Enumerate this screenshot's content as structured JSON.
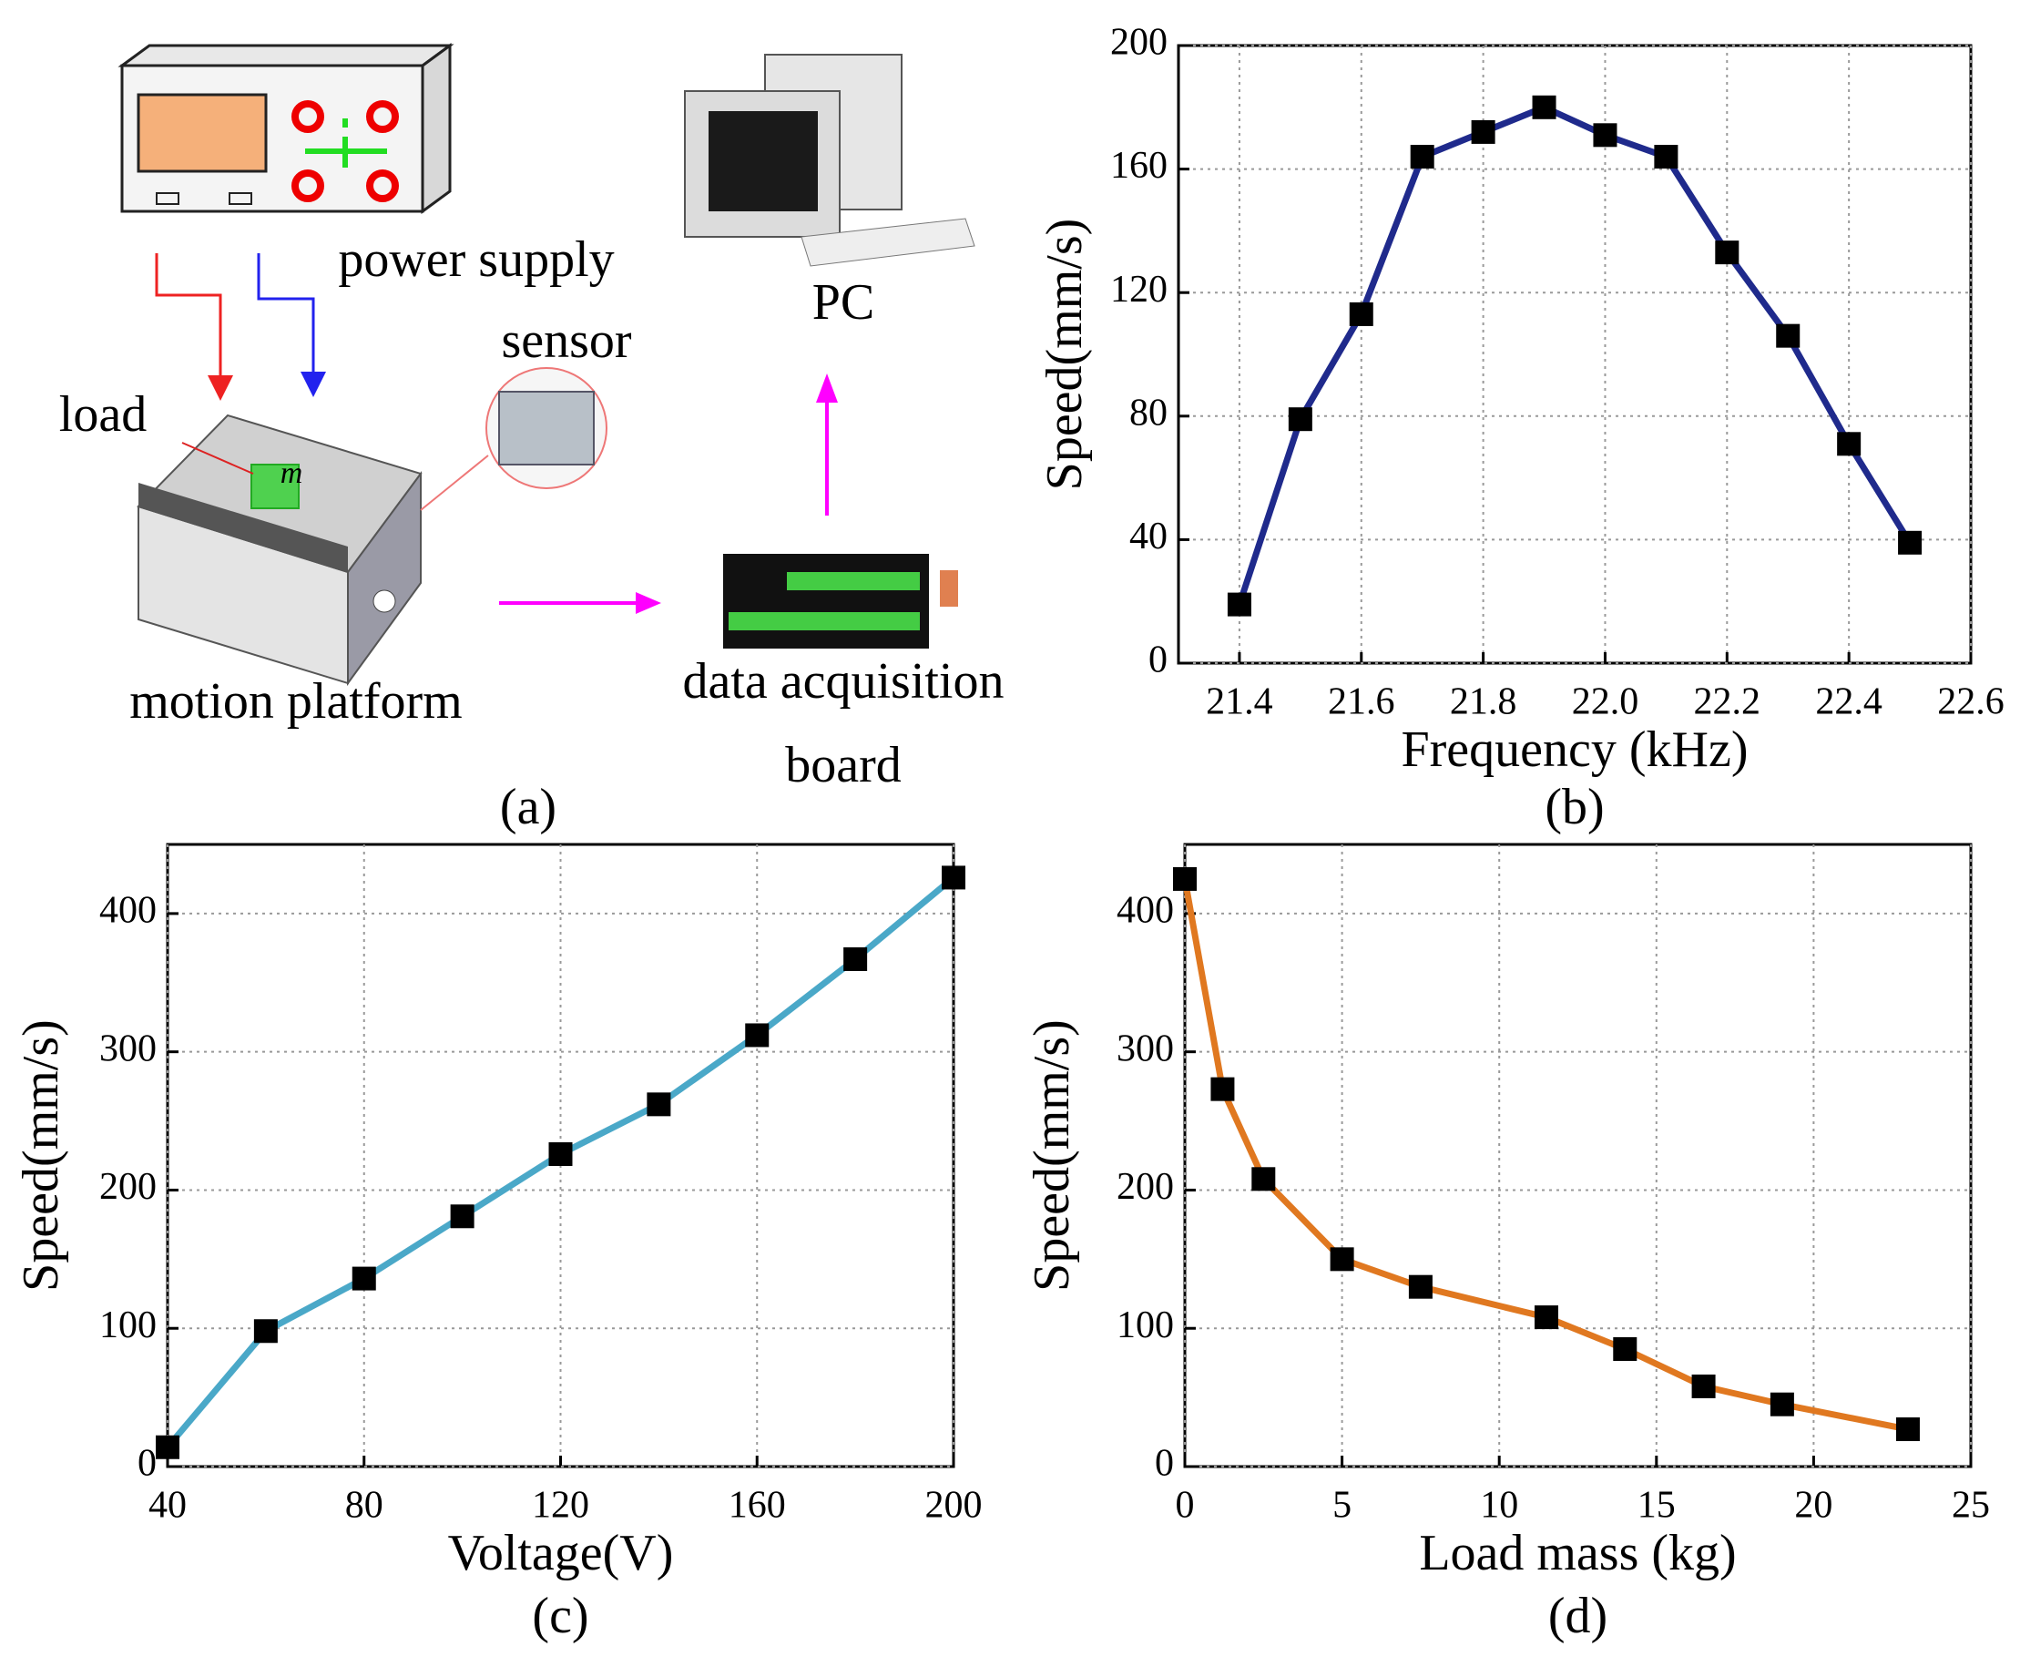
{
  "diagram": {
    "panel": "(a)",
    "nodes": [
      {
        "label": "power supply"
      },
      {
        "label": "sensor"
      },
      {
        "label": "load"
      },
      {
        "label": "motion platform"
      },
      {
        "label": "data acquisition"
      },
      {
        "label": "board"
      },
      {
        "label": "PC"
      },
      {
        "label": "m"
      }
    ]
  },
  "chart_data": [
    {
      "type": "line",
      "panel": "(b)",
      "x_label": "Frequency (kHz)",
      "y_label": "Speed(mm/s)",
      "x": [
        21.4,
        21.5,
        21.6,
        21.7,
        21.8,
        21.9,
        22.0,
        22.1,
        22.2,
        22.3,
        22.4,
        22.5
      ],
      "values": [
        19,
        79,
        113,
        164,
        172,
        180,
        171,
        164,
        133,
        106,
        71,
        39
      ],
      "color": "#1f2a8c",
      "marker": "square",
      "marker_color": "#000000",
      "xlim": [
        21.3,
        22.6
      ],
      "xticks": [
        21.4,
        21.6,
        21.8,
        {
          "value": 22,
          "label": "22.0"
        },
        22.2,
        22.4,
        22.6
      ],
      "ylim": [
        0,
        200
      ],
      "yticks": [
        0,
        40,
        80,
        120,
        160,
        200
      ],
      "grid": true
    },
    {
      "type": "line",
      "panel": "(c)",
      "x_label": "Voltage(V)",
      "y_label": "Speed(mm/s)",
      "x": [
        40,
        60,
        80,
        100,
        120,
        140,
        160,
        180,
        200
      ],
      "values": [
        14,
        98,
        136,
        181,
        226,
        262,
        312,
        367,
        426
      ],
      "color": "#4aa8c8",
      "marker": "square",
      "marker_color": "#000000",
      "xlim": [
        40,
        200
      ],
      "xticks": [
        40,
        80,
        120,
        160,
        200
      ],
      "ylim": [
        0,
        450
      ],
      "yticks": [
        0,
        100,
        200,
        300,
        400
      ],
      "grid": true
    },
    {
      "type": "line",
      "panel": "(d)",
      "x_label": "Load mass (kg)",
      "y_label": "Speed(mm/s)",
      "x": [
        0,
        1.2,
        2.5,
        5,
        7.5,
        11.5,
        14,
        16.5,
        19,
        23
      ],
      "values": [
        425,
        273,
        208,
        150,
        130,
        108,
        85,
        58,
        45,
        27
      ],
      "color": "#e07820",
      "marker": "square",
      "marker_color": "#000000",
      "xlim": [
        0,
        25
      ],
      "xticks": [
        0,
        5,
        10,
        15,
        20,
        25
      ],
      "ylim": [
        0,
        450
      ],
      "yticks": [
        0,
        100,
        200,
        300,
        400
      ],
      "grid": true
    }
  ]
}
